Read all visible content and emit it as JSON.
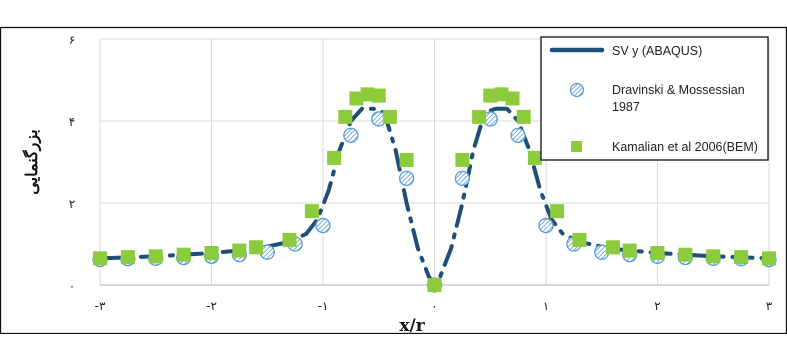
{
  "chart_data": {
    "type": "scatter",
    "title": "",
    "xlabel": "x/r",
    "ylabel": "بزرگنمایی",
    "xlim": [
      -3.0,
      3.0
    ],
    "ylim": [
      0,
      6
    ],
    "x_ticks": [
      {
        "value": -3,
        "label": "-۳"
      },
      {
        "value": -2,
        "label": "-۲"
      },
      {
        "value": -1,
        "label": "-۱"
      },
      {
        "value": 0,
        "label": "۰"
      },
      {
        "value": 1,
        "label": "۱"
      },
      {
        "value": 2,
        "label": "۲"
      },
      {
        "value": 3,
        "label": "۳"
      }
    ],
    "y_ticks": [
      {
        "value": 0,
        "label": "۰"
      },
      {
        "value": 2,
        "label": "۲"
      },
      {
        "value": 4,
        "label": "۴"
      },
      {
        "value": 6,
        "label": "۶"
      }
    ],
    "grid": true,
    "legend_position": "top-right",
    "series": [
      {
        "name": "SV y (ABAQUS)",
        "style": "dash-dot-line",
        "color": "#1f4e79",
        "x": [
          -3.0,
          -2.5,
          -2.0,
          -1.6,
          -1.3,
          -1.15,
          -1.05,
          -0.95,
          -0.85,
          -0.75,
          -0.65,
          -0.55,
          -0.45,
          -0.35,
          -0.25,
          -0.15,
          -0.05,
          0.0,
          0.05,
          0.15,
          0.25,
          0.35,
          0.45,
          0.55,
          0.65,
          0.75,
          0.85,
          0.95,
          1.05,
          1.15,
          1.3,
          1.6,
          2.0,
          2.5,
          3.0
        ],
        "y": [
          0.65,
          0.7,
          0.78,
          0.88,
          1.05,
          1.25,
          1.6,
          2.3,
          3.3,
          4.0,
          4.3,
          4.3,
          4.2,
          3.3,
          2.0,
          0.9,
          0.2,
          0.0,
          0.2,
          0.9,
          2.0,
          3.3,
          4.2,
          4.3,
          4.3,
          4.0,
          3.3,
          2.3,
          1.6,
          1.25,
          1.05,
          0.88,
          0.78,
          0.7,
          0.65
        ]
      },
      {
        "name": "Dravinski & Mossessian 1987",
        "style": "hatched-circle",
        "color": "#6fa8dc",
        "x": [
          -3.0,
          -2.75,
          -2.5,
          -2.25,
          -2.0,
          -1.75,
          -1.5,
          -1.25,
          -1.0,
          -0.75,
          -0.5,
          -0.25,
          0.0,
          0.25,
          0.5,
          0.75,
          1.0,
          1.25,
          1.5,
          1.75,
          2.0,
          2.25,
          2.5,
          2.75,
          3.0
        ],
        "y": [
          0.62,
          0.64,
          0.65,
          0.67,
          0.7,
          0.74,
          0.8,
          1.0,
          1.45,
          3.65,
          4.05,
          2.6,
          0.0,
          2.6,
          4.05,
          3.65,
          1.45,
          1.0,
          0.8,
          0.74,
          0.7,
          0.67,
          0.65,
          0.64,
          0.62
        ]
      },
      {
        "name": "Kamalian et al 2006(BEM)",
        "style": "square",
        "color": "#8ccc3c",
        "x": [
          -3.0,
          -2.75,
          -2.5,
          -2.25,
          -2.0,
          -1.75,
          -1.6,
          -1.3,
          -1.1,
          -0.9,
          -0.8,
          -0.7,
          -0.6,
          -0.5,
          -0.4,
          -0.25,
          0.0,
          0.25,
          0.4,
          0.5,
          0.6,
          0.7,
          0.8,
          0.9,
          1.1,
          1.3,
          1.6,
          1.75,
          2.0,
          2.25,
          2.5,
          2.75,
          3.0
        ],
        "y": [
          0.65,
          0.68,
          0.7,
          0.74,
          0.78,
          0.84,
          0.92,
          1.1,
          1.8,
          3.1,
          4.1,
          4.55,
          4.65,
          4.62,
          4.1,
          3.05,
          0.0,
          3.05,
          4.1,
          4.62,
          4.65,
          4.55,
          4.1,
          3.1,
          1.8,
          1.1,
          0.92,
          0.84,
          0.78,
          0.74,
          0.7,
          0.68,
          0.65
        ]
      }
    ]
  }
}
